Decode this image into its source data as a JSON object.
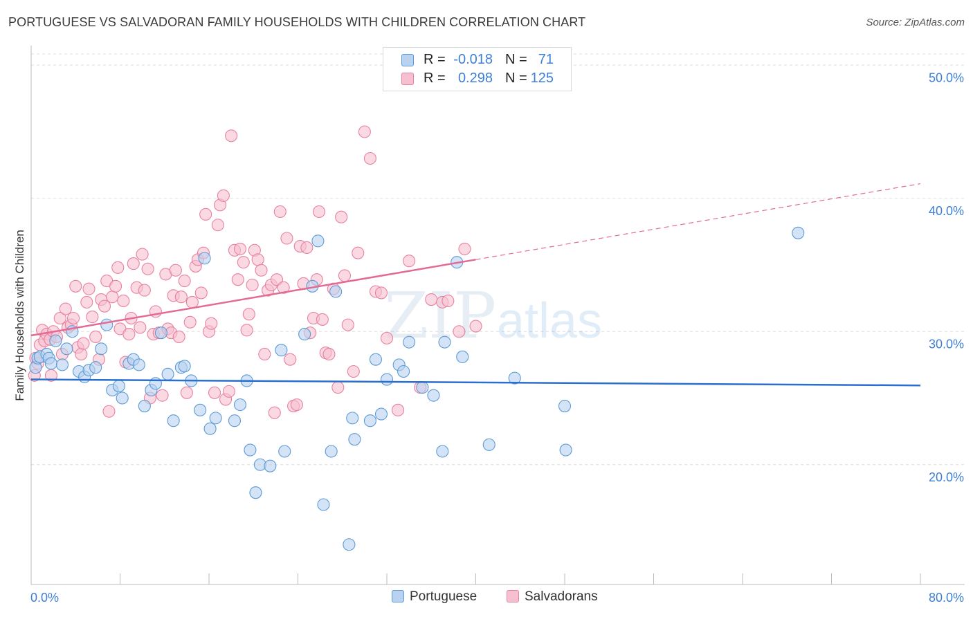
{
  "title": "PORTUGUESE VS SALVADORAN FAMILY HOUSEHOLDS WITH CHILDREN CORRELATION CHART",
  "source": "Source: ZipAtlas.com",
  "watermark": {
    "zip": "ZIP",
    "atlas": "atlas"
  },
  "colors": {
    "blue": "#5b9bd5",
    "blue_fill": "#b8d2f0",
    "blue_line": "#2b6fce",
    "pink": "#e8819f",
    "pink_fill": "#f7c0d0",
    "pink_line": "#e36a94",
    "axis_text": "#3d7fd6",
    "grid": "#dddddd"
  },
  "legend": {
    "rows": [
      {
        "r_label": "R =",
        "r_value": "-0.018",
        "n_label": "N =",
        "n_value": "71"
      },
      {
        "r_label": "R =",
        "r_value": "0.298",
        "n_label": "N =",
        "n_value": "125"
      }
    ]
  },
  "bottom_legend": {
    "portuguese": "Portuguese",
    "salvadorans": "Salvadorans"
  },
  "chart_data": {
    "type": "scatter",
    "title": "PORTUGUESE VS SALVADORAN FAMILY HOUSEHOLDS WITH CHILDREN CORRELATION CHART",
    "xlabel": "",
    "ylabel": "Family Households with Children",
    "xlim": [
      0,
      80
    ],
    "ylim": [
      11,
      51
    ],
    "x_tick_labels": [
      "0.0%",
      "80.0%"
    ],
    "y_ticks": [
      20,
      30,
      40,
      50
    ],
    "y_tick_labels": [
      "20.0%",
      "30.0%",
      "40.0%",
      "50.0%"
    ],
    "grid": true,
    "legend_position": "top-center",
    "series": [
      {
        "name": "Portuguese",
        "color": "#5b9bd5",
        "points": [
          [
            0.4,
            27.3
          ],
          [
            0.6,
            28.0
          ],
          [
            0.8,
            28.1
          ],
          [
            1.4,
            28.3
          ],
          [
            1.6,
            28.0
          ],
          [
            1.8,
            27.6
          ],
          [
            2.2,
            29.3
          ],
          [
            2.8,
            27.5
          ],
          [
            3.2,
            28.7
          ],
          [
            3.7,
            30.0
          ],
          [
            4.3,
            27.0
          ],
          [
            4.8,
            26.6
          ],
          [
            5.2,
            27.1
          ],
          [
            5.8,
            27.3
          ],
          [
            6.3,
            28.7
          ],
          [
            6.8,
            30.5
          ],
          [
            7.3,
            25.6
          ],
          [
            7.9,
            25.9
          ],
          [
            8.2,
            25.0
          ],
          [
            8.8,
            27.6
          ],
          [
            9.2,
            27.9
          ],
          [
            9.7,
            27.5
          ],
          [
            10.2,
            24.4
          ],
          [
            10.8,
            25.6
          ],
          [
            11.2,
            26.1
          ],
          [
            11.7,
            29.9
          ],
          [
            12.3,
            26.8
          ],
          [
            12.8,
            23.3
          ],
          [
            13.5,
            27.3
          ],
          [
            13.8,
            27.4
          ],
          [
            14.4,
            26.3
          ],
          [
            15.2,
            24.1
          ],
          [
            15.6,
            35.5
          ],
          [
            16.1,
            22.7
          ],
          [
            16.6,
            23.5
          ],
          [
            18.3,
            23.3
          ],
          [
            18.8,
            24.5
          ],
          [
            19.4,
            26.3
          ],
          [
            19.7,
            21.1
          ],
          [
            20.2,
            17.9
          ],
          [
            20.6,
            20.0
          ],
          [
            21.5,
            19.9
          ],
          [
            22.5,
            28.6
          ],
          [
            22.8,
            21.0
          ],
          [
            24.6,
            29.8
          ],
          [
            25.3,
            33.4
          ],
          [
            25.8,
            36.8
          ],
          [
            26.3,
            17.0
          ],
          [
            27.0,
            21.0
          ],
          [
            27.4,
            33.0
          ],
          [
            28.6,
            14.0
          ],
          [
            28.9,
            23.5
          ],
          [
            29.1,
            21.9
          ],
          [
            30.5,
            23.3
          ],
          [
            31.0,
            27.9
          ],
          [
            31.5,
            23.8
          ],
          [
            32.0,
            26.4
          ],
          [
            33.1,
            27.5
          ],
          [
            33.5,
            27.0
          ],
          [
            34.0,
            29.2
          ],
          [
            35.2,
            25.8
          ],
          [
            36.2,
            25.2
          ],
          [
            37.0,
            21.0
          ],
          [
            37.2,
            29.2
          ],
          [
            38.3,
            35.2
          ],
          [
            38.8,
            28.1
          ],
          [
            41.2,
            21.5
          ],
          [
            43.5,
            26.5
          ],
          [
            48.0,
            24.4
          ],
          [
            48.1,
            21.1
          ],
          [
            69.0,
            37.4
          ]
        ]
      },
      {
        "name": "Salvadorans",
        "color": "#e8819f",
        "points": [
          [
            0.3,
            26.7
          ],
          [
            0.4,
            28.0
          ],
          [
            0.6,
            27.6
          ],
          [
            0.8,
            29.0
          ],
          [
            1.0,
            30.1
          ],
          [
            1.2,
            29.3
          ],
          [
            1.4,
            29.8
          ],
          [
            1.7,
            29.4
          ],
          [
            1.8,
            26.7
          ],
          [
            2.0,
            30.0
          ],
          [
            2.3,
            29.6
          ],
          [
            2.6,
            31.0
          ],
          [
            2.8,
            28.3
          ],
          [
            3.1,
            31.7
          ],
          [
            3.3,
            30.3
          ],
          [
            3.6,
            30.5
          ],
          [
            3.8,
            31.0
          ],
          [
            4.0,
            33.4
          ],
          [
            4.2,
            28.8
          ],
          [
            4.5,
            28.3
          ],
          [
            4.7,
            29.1
          ],
          [
            5.0,
            32.2
          ],
          [
            5.2,
            33.2
          ],
          [
            5.5,
            31.1
          ],
          [
            5.8,
            29.6
          ],
          [
            6.1,
            27.9
          ],
          [
            6.3,
            32.4
          ],
          [
            6.6,
            31.9
          ],
          [
            6.8,
            33.8
          ],
          [
            7.0,
            24.0
          ],
          [
            7.3,
            32.6
          ],
          [
            7.6,
            33.4
          ],
          [
            7.8,
            34.8
          ],
          [
            8.0,
            30.2
          ],
          [
            8.3,
            32.3
          ],
          [
            8.5,
            27.7
          ],
          [
            8.8,
            29.8
          ],
          [
            9.0,
            31.0
          ],
          [
            9.2,
            35.1
          ],
          [
            9.5,
            33.3
          ],
          [
            9.8,
            30.3
          ],
          [
            10.0,
            35.8
          ],
          [
            10.2,
            33.1
          ],
          [
            10.5,
            34.7
          ],
          [
            10.7,
            25.0
          ],
          [
            11.0,
            29.8
          ],
          [
            11.2,
            31.5
          ],
          [
            11.5,
            29.9
          ],
          [
            11.8,
            25.2
          ],
          [
            12.1,
            34.3
          ],
          [
            12.3,
            30.2
          ],
          [
            12.6,
            29.9
          ],
          [
            12.8,
            32.7
          ],
          [
            13.0,
            34.6
          ],
          [
            13.3,
            29.6
          ],
          [
            13.5,
            32.6
          ],
          [
            13.8,
            33.8
          ],
          [
            14.0,
            25.4
          ],
          [
            14.3,
            30.7
          ],
          [
            14.5,
            32.2
          ],
          [
            14.8,
            34.9
          ],
          [
            15.0,
            35.4
          ],
          [
            15.3,
            32.9
          ],
          [
            15.5,
            35.9
          ],
          [
            15.7,
            38.8
          ],
          [
            16.0,
            30.0
          ],
          [
            16.2,
            30.6
          ],
          [
            16.5,
            25.4
          ],
          [
            16.8,
            38.0
          ],
          [
            17.0,
            39.5
          ],
          [
            17.3,
            40.2
          ],
          [
            17.5,
            24.9
          ],
          [
            17.8,
            25.5
          ],
          [
            18.0,
            44.7
          ],
          [
            18.3,
            36.1
          ],
          [
            18.6,
            33.9
          ],
          [
            18.8,
            36.2
          ],
          [
            19.1,
            35.2
          ],
          [
            19.4,
            30.1
          ],
          [
            19.6,
            31.3
          ],
          [
            19.9,
            33.5
          ],
          [
            20.1,
            36.1
          ],
          [
            20.4,
            35.4
          ],
          [
            20.7,
            34.6
          ],
          [
            21.0,
            28.3
          ],
          [
            21.3,
            33.1
          ],
          [
            21.6,
            33.5
          ],
          [
            21.9,
            23.9
          ],
          [
            22.1,
            33.9
          ],
          [
            22.4,
            39.0
          ],
          [
            22.7,
            33.3
          ],
          [
            23.0,
            37.0
          ],
          [
            23.3,
            27.9
          ],
          [
            23.6,
            24.4
          ],
          [
            23.9,
            24.5
          ],
          [
            24.2,
            36.4
          ],
          [
            24.5,
            33.6
          ],
          [
            24.8,
            36.3
          ],
          [
            25.1,
            29.9
          ],
          [
            25.4,
            31.0
          ],
          [
            25.7,
            33.9
          ],
          [
            25.9,
            39.0
          ],
          [
            26.2,
            30.9
          ],
          [
            26.5,
            28.4
          ],
          [
            26.8,
            28.3
          ],
          [
            27.2,
            33.2
          ],
          [
            27.6,
            25.8
          ],
          [
            27.9,
            38.6
          ],
          [
            28.2,
            34.2
          ],
          [
            28.5,
            30.5
          ],
          [
            29.0,
            27.0
          ],
          [
            29.4,
            35.9
          ],
          [
            30.0,
            45.0
          ],
          [
            30.5,
            43.0
          ],
          [
            31.0,
            33.0
          ],
          [
            31.5,
            32.9
          ],
          [
            32.0,
            29.5
          ],
          [
            33.0,
            24.1
          ],
          [
            34.0,
            35.3
          ],
          [
            35.0,
            25.8
          ],
          [
            36.0,
            32.4
          ],
          [
            37.0,
            32.2
          ],
          [
            37.5,
            32.3
          ],
          [
            38.5,
            30.0
          ],
          [
            39.0,
            36.2
          ],
          [
            40.0,
            30.4
          ]
        ]
      }
    ],
    "trend_lines": [
      {
        "series": "Portuguese",
        "x_start": 0,
        "y_start": 26.4,
        "x_end": 80,
        "y_end": 25.95,
        "style": "solid"
      },
      {
        "series": "Salvadorans",
        "x_start": 0,
        "y_start": 29.7,
        "x_end": 40,
        "y_end": 35.4,
        "style": "solid"
      },
      {
        "series": "Salvadorans",
        "x_start": 40,
        "y_start": 35.4,
        "x_end": 80,
        "y_end": 41.1,
        "style": "dashed"
      }
    ]
  }
}
